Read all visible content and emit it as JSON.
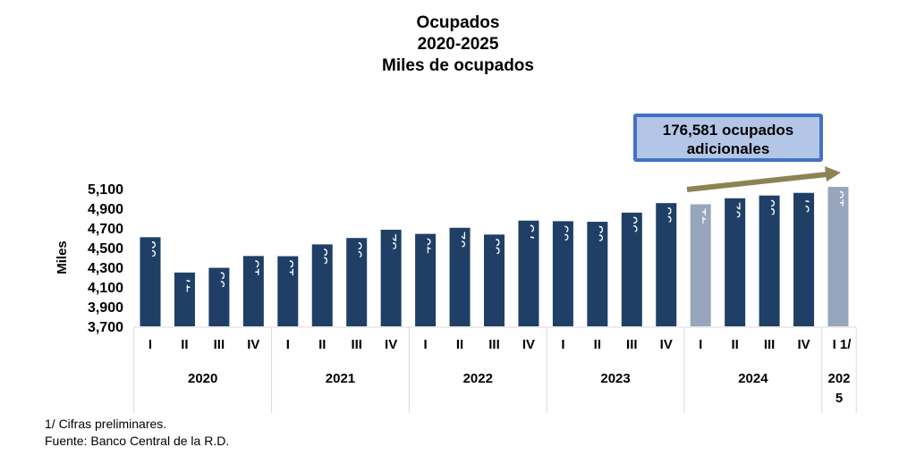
{
  "chart_data": {
    "type": "bar",
    "title": [
      "Ocupados",
      "2020-2025",
      "Miles de ocupados"
    ],
    "ylabel": "Miles",
    "ylim": [
      3700,
      5100
    ],
    "yticks": [
      "3,700",
      "3,900",
      "4,100",
      "4,300",
      "4,500",
      "4,700",
      "4,900",
      "5,100"
    ],
    "ytick_values": [
      3700,
      3900,
      4100,
      4300,
      4500,
      4700,
      4900,
      5100
    ],
    "years": [
      {
        "label": "2020",
        "count": 4
      },
      {
        "label": "2021",
        "count": 4
      },
      {
        "label": "2022",
        "count": 4
      },
      {
        "label": "2023",
        "count": 4
      },
      {
        "label": "2024",
        "count": 4
      },
      {
        "label": "202\n5",
        "count": 1
      }
    ],
    "quarters": [
      "I",
      "II",
      "III",
      "IV",
      "I",
      "II",
      "III",
      "IV",
      "I",
      "II",
      "III",
      "IV",
      "I",
      "II",
      "III",
      "IV",
      "I",
      "II",
      "III",
      "IV",
      "I 1/"
    ],
    "values": [
      4606,
      4247,
      4295,
      4415,
      4413,
      4533,
      4598,
      4682,
      4640,
      4702,
      4633,
      4775,
      4769,
      4763,
      4856,
      4953,
      4941,
      5002,
      5030,
      5057,
      5118
    ],
    "labels": [
      "4,606",
      "4,247",
      "4,295",
      "4,415",
      "4,413",
      "4,533",
      "4,598",
      "4,682",
      "4,640",
      "4,702",
      "4,633",
      "4,775",
      "4,769",
      "4,763",
      "4,856",
      "4,953",
      "4,941",
      "5,002",
      "5,030",
      "5,057",
      "5,118"
    ],
    "highlighted": [
      16,
      20
    ],
    "annotation": "176,581 ocupados adicionales",
    "colors": {
      "bar": "#1f3f66",
      "highlight": "#98a6bd",
      "arrow": "#8b8452"
    }
  },
  "annotation": {
    "line1": "176,581 ocupados",
    "line2": "adicionales"
  },
  "notes": {
    "preliminary": "1/ Cifras preliminares.",
    "source": "Fuente: Banco Central de la R.D."
  }
}
